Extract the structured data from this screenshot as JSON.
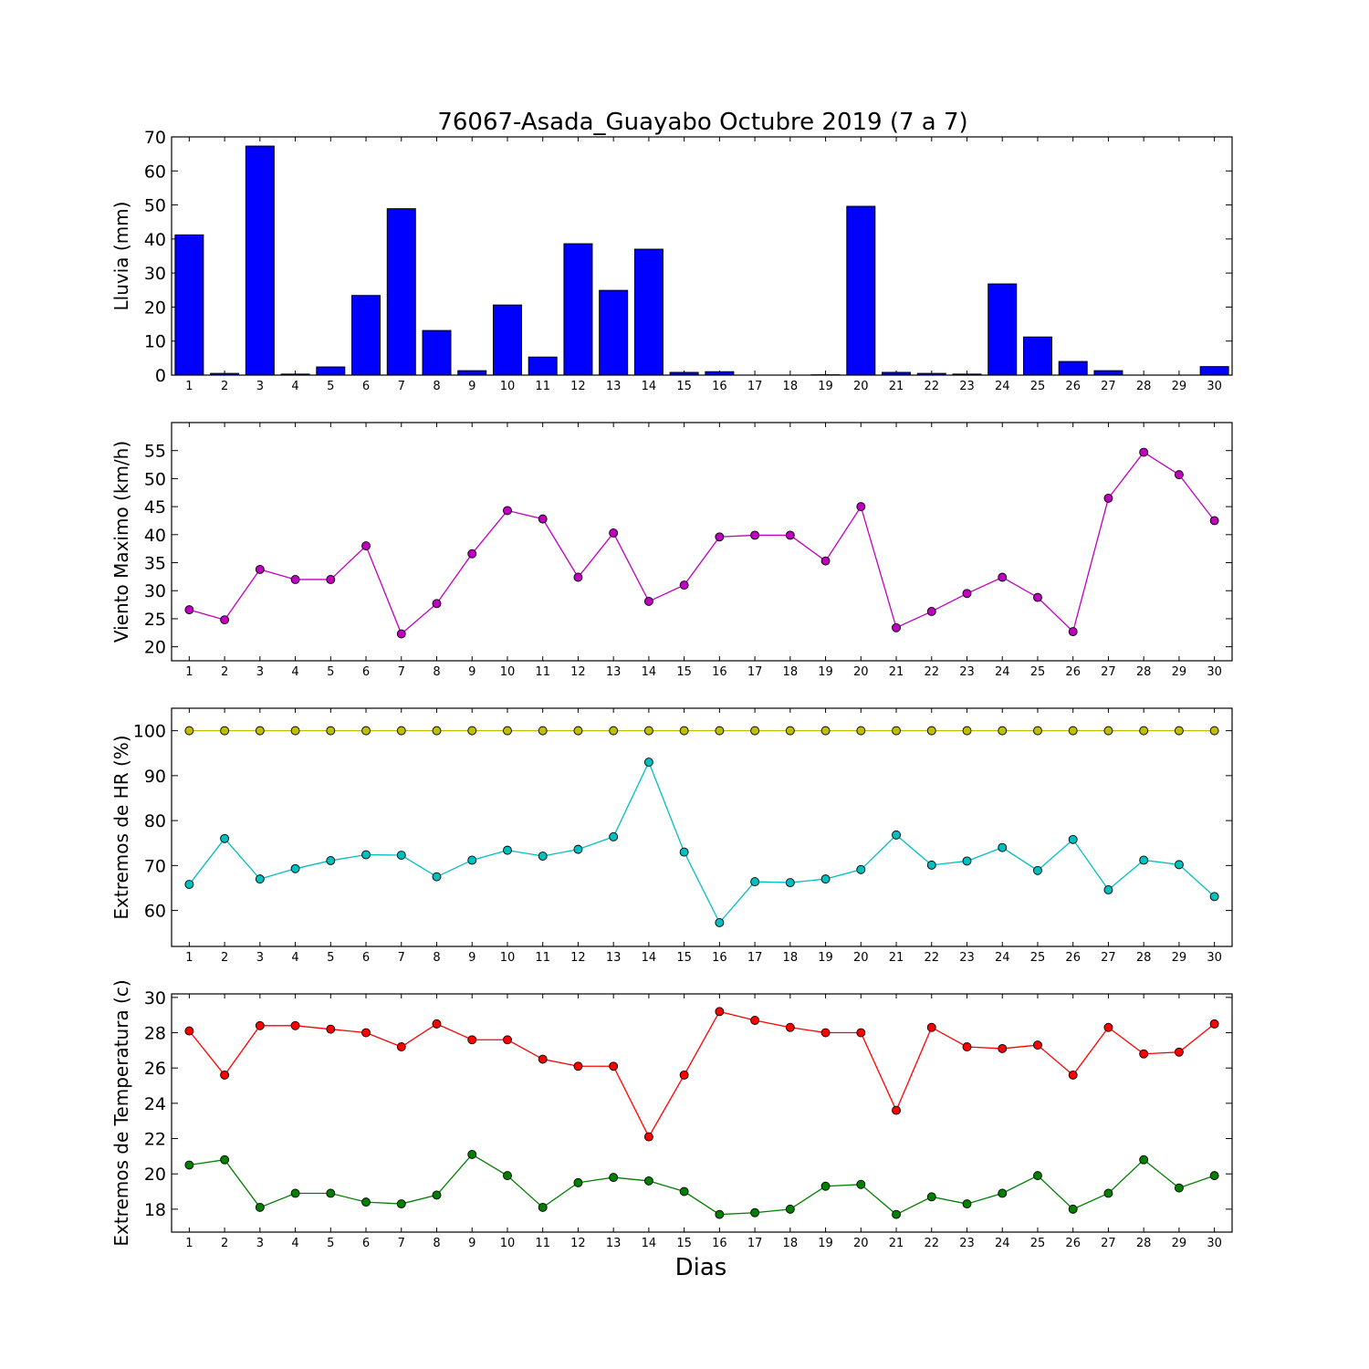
{
  "title": "76067-Asada_Guayabo Octubre 2019  (7 a 7)",
  "xlabel": "Dias",
  "chart_data": [
    {
      "type": "bar",
      "ylabel": "Lluvia (mm)",
      "ylim": [
        0,
        70
      ],
      "yticks": [
        0,
        10,
        20,
        30,
        40,
        50,
        60,
        70
      ],
      "color": "#0000ff",
      "categories": [
        1,
        2,
        3,
        4,
        5,
        6,
        7,
        8,
        9,
        10,
        11,
        12,
        13,
        14,
        15,
        16,
        17,
        18,
        19,
        20,
        21,
        22,
        23,
        24,
        25,
        26,
        27,
        28,
        29,
        30
      ],
      "values": [
        41.2,
        0.5,
        67.3,
        0.3,
        2.4,
        23.4,
        48.9,
        13.1,
        1.3,
        20.6,
        5.3,
        38.6,
        24.9,
        37.0,
        0.8,
        1.0,
        0.0,
        0.0,
        0.1,
        49.6,
        0.8,
        0.5,
        0.3,
        26.8,
        11.2,
        4.0,
        1.3,
        0.0,
        0.0,
        2.5
      ]
    },
    {
      "type": "line",
      "ylabel": "Viento Maximo (km/h)",
      "ylim": [
        17.5,
        60
      ],
      "yticks": [
        20,
        25,
        30,
        35,
        40,
        45,
        50,
        55
      ],
      "categories": [
        1,
        2,
        3,
        4,
        5,
        6,
        7,
        8,
        9,
        10,
        11,
        12,
        13,
        14,
        15,
        16,
        17,
        18,
        19,
        20,
        21,
        22,
        23,
        24,
        25,
        26,
        27,
        28,
        29,
        30
      ],
      "series": [
        {
          "color": "#bf00bf",
          "values": [
            26.6,
            24.8,
            33.8,
            32.0,
            32.0,
            38.0,
            22.3,
            27.7,
            36.6,
            44.3,
            42.8,
            32.4,
            40.3,
            28.1,
            31.0,
            39.6,
            39.9,
            39.9,
            35.3,
            45.0,
            23.4,
            26.3,
            29.5,
            32.4,
            28.8,
            22.7,
            46.5,
            54.7,
            50.7,
            42.5
          ]
        }
      ]
    },
    {
      "type": "line",
      "ylabel": "Extremos de HR (%)",
      "ylim": [
        52,
        105
      ],
      "yticks": [
        60,
        70,
        80,
        90,
        100
      ],
      "categories": [
        1,
        2,
        3,
        4,
        5,
        6,
        7,
        8,
        9,
        10,
        11,
        12,
        13,
        14,
        15,
        16,
        17,
        18,
        19,
        20,
        21,
        22,
        23,
        24,
        25,
        26,
        27,
        28,
        29,
        30
      ],
      "series": [
        {
          "color": "#bfbf00",
          "values": [
            100,
            100,
            100,
            100,
            100,
            100,
            100,
            100,
            100,
            100,
            100,
            100,
            100,
            100,
            100,
            100,
            100,
            100,
            100,
            100,
            100,
            100,
            100,
            100,
            100,
            100,
            100,
            100,
            100,
            100
          ]
        },
        {
          "color": "#00bfbf",
          "values": [
            65.8,
            76.0,
            67.0,
            69.3,
            71.1,
            72.4,
            72.3,
            67.5,
            71.2,
            73.4,
            72.1,
            73.6,
            76.4,
            93.0,
            73.0,
            57.3,
            66.4,
            66.2,
            67.0,
            69.1,
            76.8,
            70.1,
            71.0,
            74.0,
            68.9,
            75.8,
            64.6,
            71.2,
            70.2,
            63.1
          ]
        }
      ]
    },
    {
      "type": "line",
      "ylabel": "Extremos de Temperatura (c)",
      "ylim": [
        16.7,
        30.2
      ],
      "yticks": [
        18,
        20,
        22,
        24,
        26,
        28,
        30
      ],
      "categories": [
        1,
        2,
        3,
        4,
        5,
        6,
        7,
        8,
        9,
        10,
        11,
        12,
        13,
        14,
        15,
        16,
        17,
        18,
        19,
        20,
        21,
        22,
        23,
        24,
        25,
        26,
        27,
        28,
        29,
        30
      ],
      "series": [
        {
          "color": "#ff0000",
          "values": [
            28.1,
            25.6,
            28.4,
            28.4,
            28.2,
            28.0,
            27.2,
            28.5,
            27.6,
            27.6,
            26.5,
            26.1,
            26.1,
            22.1,
            25.6,
            29.2,
            28.7,
            28.3,
            28.0,
            28.0,
            23.6,
            28.3,
            27.2,
            27.1,
            27.3,
            25.6,
            28.3,
            26.8,
            26.9,
            28.5
          ]
        },
        {
          "color": "#008000",
          "values": [
            20.5,
            20.8,
            18.1,
            18.9,
            18.9,
            18.4,
            18.3,
            18.8,
            21.1,
            19.9,
            18.1,
            19.5,
            19.8,
            19.6,
            19.0,
            17.7,
            17.8,
            18.0,
            19.3,
            19.4,
            17.7,
            18.7,
            18.3,
            18.9,
            19.9,
            18.0,
            18.9,
            20.8,
            19.2,
            19.9
          ]
        }
      ]
    }
  ]
}
